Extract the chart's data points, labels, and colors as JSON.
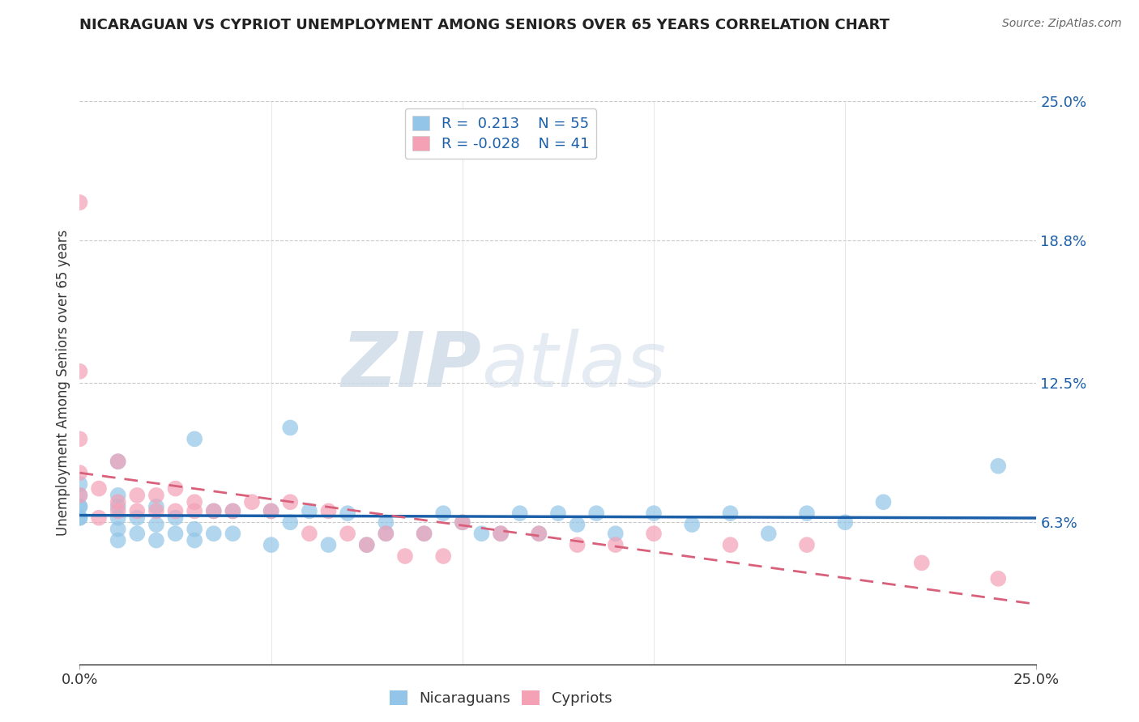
{
  "title": "NICARAGUAN VS CYPRIOT UNEMPLOYMENT AMONG SENIORS OVER 65 YEARS CORRELATION CHART",
  "source": "Source: ZipAtlas.com",
  "ylabel": "Unemployment Among Seniors over 65 years",
  "xlim": [
    0.0,
    0.25
  ],
  "ylim": [
    0.0,
    0.25
  ],
  "xtick_positions": [
    0.0,
    0.25
  ],
  "xtick_labels": [
    "0.0%",
    "25.0%"
  ],
  "ytick_vals_right": [
    0.25,
    0.188,
    0.125,
    0.063
  ],
  "ytick_labels_right": [
    "25.0%",
    "18.8%",
    "12.5%",
    "6.3%"
  ],
  "blue_color": "#92c5e8",
  "pink_color": "#f4a0b5",
  "blue_line_color": "#1a5fa8",
  "pink_line_color": "#d9607a",
  "watermark_zip": "ZIP",
  "watermark_atlas": "atlas",
  "background_color": "#ffffff",
  "grid_color": "#bbbbbb",
  "nicaraguan_x": [
    0.0,
    0.0,
    0.0,
    0.0,
    0.0,
    0.0,
    0.01,
    0.01,
    0.01,
    0.01,
    0.01,
    0.01,
    0.015,
    0.015,
    0.02,
    0.02,
    0.02,
    0.025,
    0.025,
    0.03,
    0.03,
    0.03,
    0.035,
    0.035,
    0.04,
    0.04,
    0.05,
    0.05,
    0.055,
    0.055,
    0.06,
    0.065,
    0.07,
    0.075,
    0.08,
    0.08,
    0.09,
    0.095,
    0.1,
    0.105,
    0.11,
    0.115,
    0.12,
    0.125,
    0.13,
    0.135,
    0.14,
    0.15,
    0.16,
    0.17,
    0.18,
    0.19,
    0.2,
    0.21,
    0.24
  ],
  "nicaraguan_y": [
    0.065,
    0.065,
    0.07,
    0.07,
    0.075,
    0.08,
    0.055,
    0.06,
    0.065,
    0.07,
    0.075,
    0.09,
    0.058,
    0.065,
    0.055,
    0.062,
    0.07,
    0.058,
    0.065,
    0.055,
    0.06,
    0.1,
    0.058,
    0.068,
    0.058,
    0.068,
    0.053,
    0.068,
    0.105,
    0.063,
    0.068,
    0.053,
    0.067,
    0.053,
    0.058,
    0.063,
    0.058,
    0.067,
    0.063,
    0.058,
    0.058,
    0.067,
    0.058,
    0.067,
    0.062,
    0.067,
    0.058,
    0.067,
    0.062,
    0.067,
    0.058,
    0.067,
    0.063,
    0.072,
    0.088
  ],
  "cypriot_x": [
    0.0,
    0.0,
    0.0,
    0.0,
    0.0,
    0.005,
    0.005,
    0.01,
    0.01,
    0.01,
    0.015,
    0.015,
    0.02,
    0.02,
    0.025,
    0.025,
    0.03,
    0.03,
    0.035,
    0.04,
    0.045,
    0.05,
    0.055,
    0.06,
    0.065,
    0.07,
    0.075,
    0.08,
    0.085,
    0.09,
    0.095,
    0.1,
    0.11,
    0.12,
    0.13,
    0.14,
    0.15,
    0.17,
    0.19,
    0.22,
    0.24
  ],
  "cypriot_y": [
    0.205,
    0.13,
    0.1,
    0.085,
    0.075,
    0.078,
    0.065,
    0.068,
    0.072,
    0.09,
    0.068,
    0.075,
    0.068,
    0.075,
    0.068,
    0.078,
    0.068,
    0.072,
    0.068,
    0.068,
    0.072,
    0.068,
    0.072,
    0.058,
    0.068,
    0.058,
    0.053,
    0.058,
    0.048,
    0.058,
    0.048,
    0.063,
    0.058,
    0.058,
    0.053,
    0.053,
    0.058,
    0.053,
    0.053,
    0.045,
    0.038
  ]
}
